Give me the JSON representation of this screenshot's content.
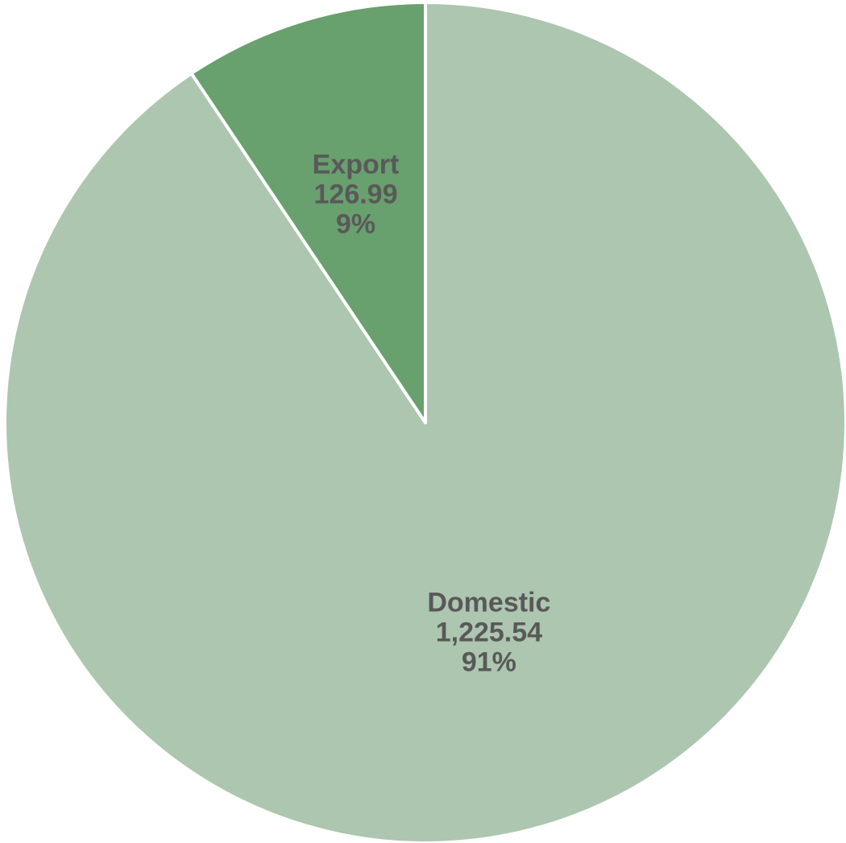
{
  "chart_data": {
    "type": "pie",
    "title": "",
    "start_angle_deg": 0,
    "direction": "clockwise",
    "slices": [
      {
        "category": "Domestic",
        "value": 1225.54,
        "value_label": "1,225.54",
        "percent_label": "91%",
        "color": "#adc6af"
      },
      {
        "category": "Export",
        "value": 126.99,
        "value_label": "126.99",
        "percent_label": "9%",
        "color": "#68a06e"
      }
    ]
  }
}
